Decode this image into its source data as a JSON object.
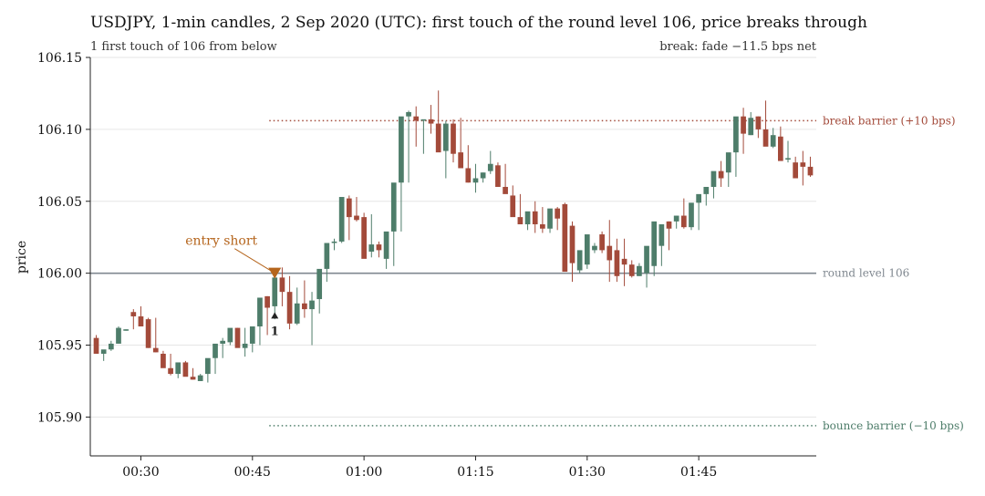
{
  "chart_data": {
    "type": "candlestick",
    "title": "USDJPY, 1-min candles, 2 Sep 2020 (UTC): first touch of the round level 106, price breaks through",
    "subtitle_left": "1 first touch of 106 from below",
    "subtitle_right": "break: fade −11.5 bps net",
    "ylabel": "price",
    "xlabel": "",
    "ylim": [
      105.873,
      106.15
    ],
    "y_ticks": [
      "105.90",
      "105.95",
      "106.00",
      "106.05",
      "106.10",
      "106.15"
    ],
    "x_tick_labels": [
      "00:30",
      "00:45",
      "01:00",
      "01:15",
      "01:30",
      "01:45"
    ],
    "x_tick_minutes": [
      30,
      45,
      60,
      75,
      90,
      105
    ],
    "xlim_minutes": [
      23.2,
      120.8
    ],
    "grid": "horizontal",
    "round_level": {
      "value": 106.0,
      "label": "round level 106",
      "color": "#808890"
    },
    "break_barrier": {
      "value": 106.106,
      "label": "break barrier (+10 bps)",
      "color": "#a34a3a",
      "from_minute": 48
    },
    "bounce_barrier": {
      "value": 105.894,
      "label": "bounce barrier (−10 bps)",
      "color": "#4e7d6a",
      "from_minute": 48
    },
    "entry": {
      "minute": 48,
      "price": 106.0,
      "label": "entry short",
      "color": "#b5651d"
    },
    "touch_marker": {
      "minute": 48,
      "price": 105.971,
      "label": "1"
    },
    "colors": {
      "up": "#4e7d6a",
      "down": "#a34a3a"
    },
    "candles": {
      "minutes": [
        24,
        25,
        26,
        27,
        28,
        29,
        30,
        31,
        32,
        33,
        34,
        35,
        36,
        37,
        38,
        39,
        40,
        41,
        42,
        43,
        44,
        45,
        46,
        47,
        48,
        49,
        50,
        51,
        52,
        53,
        54,
        55,
        56,
        57,
        58,
        59,
        60,
        61,
        62,
        63,
        64,
        65,
        66,
        67,
        68,
        69,
        70,
        71,
        72,
        73,
        74,
        75,
        76,
        77,
        78,
        79,
        80,
        81,
        82,
        83,
        84,
        85,
        86,
        87,
        88,
        89,
        90,
        91,
        92,
        93,
        94,
        95,
        96,
        97,
        98,
        99,
        100,
        101,
        102,
        103,
        104,
        105,
        106,
        107,
        108,
        109,
        110,
        111,
        112,
        113,
        114,
        115,
        116,
        117,
        118,
        119,
        120
      ],
      "open": [
        105.955,
        105.944,
        105.947,
        105.951,
        105.96,
        105.973,
        105.97,
        105.968,
        105.948,
        105.944,
        105.934,
        105.93,
        105.938,
        105.928,
        105.925,
        105.93,
        105.941,
        105.951,
        105.952,
        105.962,
        105.948,
        105.951,
        105.963,
        105.984,
        105.977,
        105.997,
        105.987,
        105.965,
        105.979,
        105.975,
        105.982,
        106.003,
        106.021,
        106.022,
        106.052,
        106.04,
        106.039,
        106.015,
        106.02,
        106.01,
        106.029,
        106.063,
        106.109,
        106.109,
        106.106,
        106.107,
        106.104,
        106.085,
        106.104,
        106.084,
        106.073,
        106.063,
        106.066,
        106.071,
        106.075,
        106.06,
        106.054,
        106.039,
        106.034,
        106.043,
        106.034,
        106.031,
        106.045,
        106.048,
        106.033,
        106.002,
        106.006,
        106.016,
        106.027,
        106.019,
        106.016,
        106.01,
        106.006,
        105.998,
        106.0,
        106.005,
        106.019,
        106.036,
        106.036,
        106.04,
        106.032,
        106.049,
        106.055,
        106.06,
        106.071,
        106.07,
        106.084,
        106.109,
        106.096,
        106.109,
        106.1,
        106.088,
        106.095,
        106.079,
        106.077,
        106.077,
        106.074
      ],
      "high": [
        105.957,
        105.946,
        105.953,
        105.963,
        105.961,
        105.975,
        105.977,
        105.969,
        105.969,
        105.946,
        105.944,
        105.937,
        105.939,
        105.934,
        105.93,
        105.931,
        105.946,
        105.955,
        105.958,
        105.962,
        105.962,
        105.951,
        105.972,
        105.984,
        105.994,
        106.004,
        105.998,
        105.99,
        105.995,
        105.987,
        106.001,
        106.007,
        106.024,
        106.026,
        106.054,
        106.053,
        106.042,
        106.041,
        106.022,
        106.022,
        106.03,
        106.068,
        106.113,
        106.116,
        106.106,
        106.117,
        106.127,
        106.106,
        106.107,
        106.108,
        106.089,
        106.076,
        106.07,
        106.085,
        106.077,
        106.076,
        106.061,
        106.055,
        106.041,
        106.05,
        106.046,
        106.035,
        106.046,
        106.049,
        106.036,
        106.011,
        106.012,
        106.021,
        106.029,
        106.037,
        106.024,
        106.024,
        106.009,
        106.007,
        106.013,
        106.015,
        106.026,
        106.036,
        106.04,
        106.052,
        106.048,
        106.053,
        106.057,
        106.068,
        106.078,
        106.076,
        106.092,
        106.115,
        106.112,
        106.109,
        106.12,
        106.101,
        106.102,
        106.092,
        106.081,
        106.085,
        106.081
      ],
      "low": [
        105.944,
        105.939,
        105.946,
        105.951,
        105.96,
        105.961,
        105.963,
        105.948,
        105.945,
        105.937,
        105.929,
        105.927,
        105.93,
        105.926,
        105.925,
        105.924,
        105.93,
        105.941,
        105.95,
        105.952,
        105.942,
        105.945,
        105.95,
        105.957,
        105.968,
        105.977,
        105.961,
        105.964,
        105.969,
        105.95,
        105.972,
        105.994,
        106.016,
        106.021,
        106.023,
        106.036,
        106.034,
        106.011,
        106.011,
        106.003,
        106.005,
        106.029,
        106.063,
        106.088,
        106.083,
        106.097,
        106.101,
        106.066,
        106.077,
        106.079,
        106.063,
        106.056,
        106.063,
        106.069,
        106.065,
        106.056,
        106.047,
        106.035,
        106.03,
        106.028,
        106.028,
        106.028,
        106.03,
        106.037,
        105.994,
        106.0,
        106.003,
        106.014,
        106.014,
        105.994,
        105.994,
        105.991,
        105.997,
        105.998,
        105.99,
        105.998,
        106.005,
        106.016,
        106.031,
        106.031,
        106.03,
        106.03,
        106.047,
        106.052,
        106.06,
        106.06,
        106.067,
        106.083,
        106.096,
        106.094,
        106.093,
        106.087,
        106.088,
        106.077,
        106.076,
        106.061,
        106.067
      ],
      "close": [
        105.944,
        105.947,
        105.951,
        105.962,
        105.961,
        105.97,
        105.963,
        105.948,
        105.945,
        105.934,
        105.93,
        105.938,
        105.928,
        105.926,
        105.929,
        105.941,
        105.951,
        105.953,
        105.962,
        105.948,
        105.951,
        105.963,
        105.983,
        105.976,
        105.997,
        105.987,
        105.965,
        105.979,
        105.975,
        105.981,
        106.003,
        106.021,
        106.022,
        106.053,
        106.039,
        106.037,
        106.01,
        106.02,
        106.016,
        106.029,
        106.063,
        106.109,
        106.112,
        106.106,
        106.107,
        106.104,
        106.084,
        106.104,
        106.083,
        106.073,
        106.063,
        106.066,
        106.07,
        106.076,
        106.06,
        106.055,
        106.039,
        106.034,
        106.043,
        106.034,
        106.031,
        106.045,
        106.038,
        106.001,
        106.007,
        106.016,
        106.027,
        106.019,
        106.016,
        106.009,
        105.998,
        106.006,
        105.998,
        106.005,
        106.019,
        106.036,
        106.034,
        106.031,
        106.04,
        106.032,
        106.049,
        106.055,
        106.06,
        106.071,
        106.066,
        106.084,
        106.109,
        106.097,
        106.108,
        106.1,
        106.088,
        106.096,
        106.078,
        106.08,
        106.066,
        106.074,
        106.068
      ]
    }
  }
}
